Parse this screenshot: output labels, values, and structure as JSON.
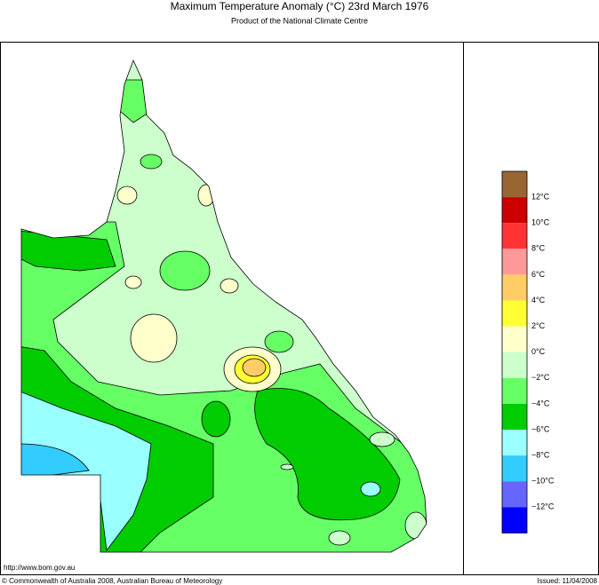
{
  "header": {
    "title": "Maximum Temperature Anomaly (°C)  23rd March 1976",
    "subtitle": "Product of the National Climate Centre"
  },
  "legend": {
    "colors": [
      "#996633",
      "#cc0000",
      "#ff3333",
      "#ff9999",
      "#ffcc66",
      "#ffff33",
      "#ffffcc",
      "#ccffcc",
      "#66ff66",
      "#00cc00",
      "#99ffff",
      "#33ccff",
      "#6666ff",
      "#0000ff"
    ],
    "labels": [
      "12°C",
      "10°C",
      "8°C",
      "6°C",
      "4°C",
      "2°C",
      "0°C",
      "−2°C",
      "−4°C",
      "−6°C",
      "−8°C",
      "−10°C",
      "−12°C"
    ]
  },
  "footer": {
    "url": "http://www.bom.gov.au",
    "copyright": "© Commonwealth of Australia 2008, Australian Bureau of Meteorology",
    "issued": "Issued: 11/04/2008"
  }
}
